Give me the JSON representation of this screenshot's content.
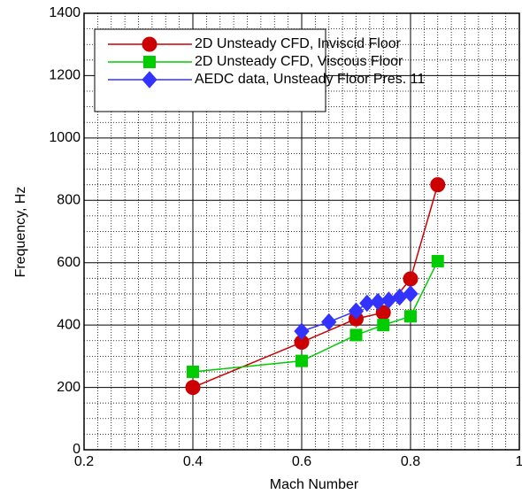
{
  "chart_data": {
    "type": "line",
    "xlabel": "Mach Number",
    "ylabel": "Frequency, Hz",
    "xlim": [
      0.2,
      1
    ],
    "ylim": [
      0,
      1400
    ],
    "xticks": [
      0.2,
      0.4,
      0.6,
      0.8,
      1
    ],
    "yticks": [
      0,
      200,
      400,
      600,
      800,
      1000,
      1200,
      1400
    ],
    "grid": true,
    "minor_grid": true,
    "legend": "upper left",
    "series": [
      {
        "name": "2D Unsteady CFD, Inviscid  Floor",
        "color": "#cc0000",
        "marker": "circle",
        "x": [
          0.4,
          0.6,
          0.7,
          0.75,
          0.8,
          0.85
        ],
        "values": [
          200,
          345,
          420,
          440,
          548,
          850
        ]
      },
      {
        "name": "2D Unsteady CFD, Viscous Floor",
        "color": "#00cc00",
        "marker": "square",
        "x": [
          0.4,
          0.6,
          0.7,
          0.75,
          0.8,
          0.85
        ],
        "values": [
          250,
          285,
          368,
          400,
          428,
          605
        ]
      },
      {
        "name": "AEDC data, Unsteady Floor Pres. 11",
        "color": "#3333ff",
        "marker": "diamond",
        "x": [
          0.6,
          0.65,
          0.7,
          0.72,
          0.74,
          0.76,
          0.78,
          0.8
        ],
        "values": [
          380,
          410,
          445,
          470,
          475,
          480,
          490,
          500
        ]
      }
    ]
  }
}
